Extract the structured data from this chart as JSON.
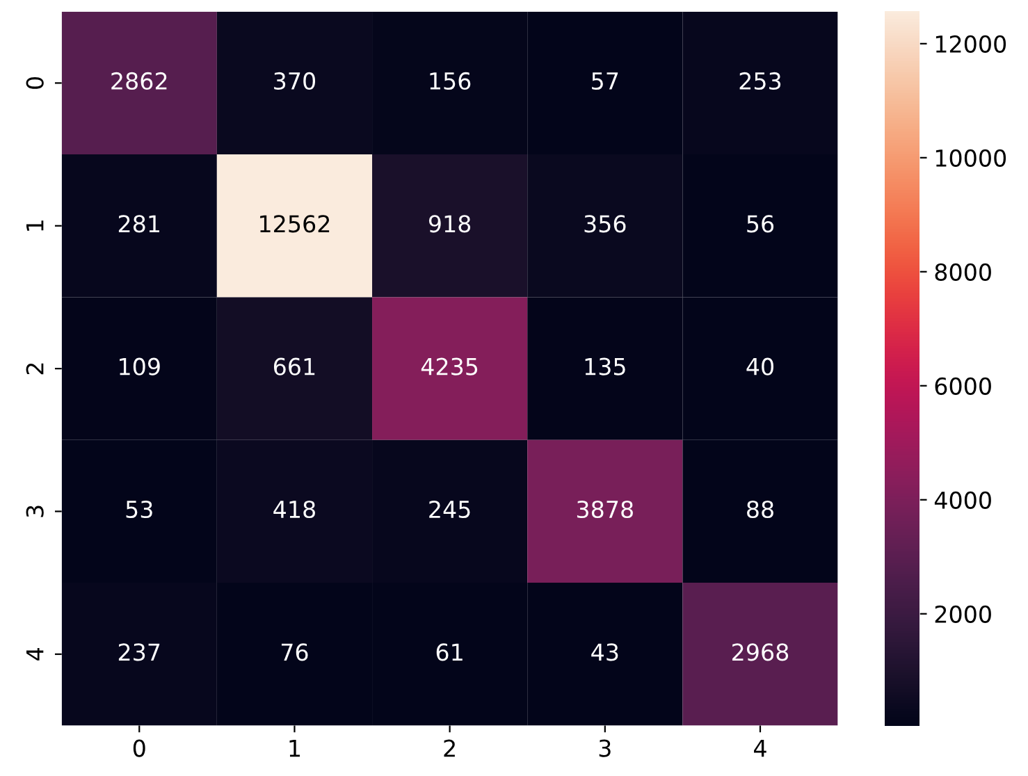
{
  "chart_data": {
    "type": "heatmap",
    "categories": [
      "0",
      "1",
      "2",
      "3",
      "4"
    ],
    "y_categories": [
      "0",
      "1",
      "2",
      "3",
      "4"
    ],
    "cells": [
      [
        2862,
        370,
        156,
        57,
        253
      ],
      [
        281,
        12562,
        918,
        356,
        56
      ],
      [
        109,
        661,
        4235,
        135,
        40
      ],
      [
        53,
        418,
        245,
        3878,
        88
      ],
      [
        237,
        76,
        61,
        43,
        2968
      ]
    ],
    "clim": [
      40,
      12562
    ],
    "cticks": [
      2000,
      4000,
      6000,
      8000,
      10000,
      12000
    ],
    "data_labels": true
  }
}
